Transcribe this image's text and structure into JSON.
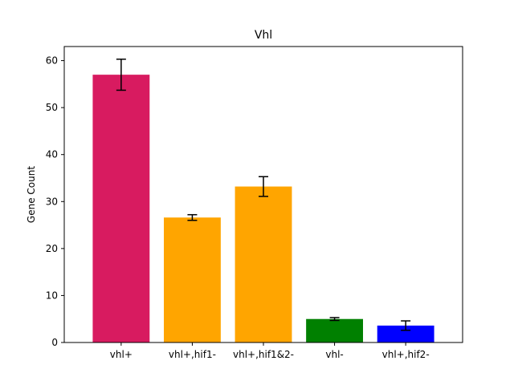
{
  "chart_data": {
    "type": "bar",
    "title": "Vhl",
    "xlabel": "",
    "ylabel": "Gene Count",
    "categories": [
      "vhl+",
      "vhl+,hif1-",
      "vhl+,hif1&2-",
      "vhl-",
      "vhl+,hif2-"
    ],
    "values": [
      57.0,
      26.6,
      33.2,
      5.0,
      3.6
    ],
    "errors": [
      3.3,
      0.6,
      2.1,
      0.3,
      1.0
    ],
    "colors": [
      "#d81b60",
      "#ffa500",
      "#ffa500",
      "#008000",
      "#0000ff"
    ],
    "ylim": [
      0,
      63
    ],
    "yticks": [
      0,
      10,
      20,
      30,
      40,
      50,
      60
    ],
    "grid": false
  }
}
